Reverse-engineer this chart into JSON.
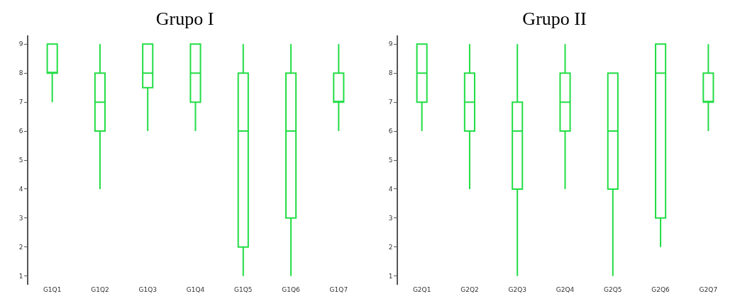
{
  "chart_data": [
    {
      "type": "box",
      "title": "Grupo I",
      "categories": [
        "G1Q1",
        "G1Q2",
        "G1Q3",
        "G1Q4",
        "G1Q5",
        "G1Q6",
        "G1Q7"
      ],
      "color": "#22dd44",
      "ylim": [
        0.7,
        9.3
      ],
      "yticks": [
        1,
        2,
        3,
        4,
        5,
        6,
        7,
        8,
        9
      ],
      "grid": false,
      "legend": false,
      "boxes": [
        {
          "low": 7,
          "q1": 8,
          "median": 8,
          "q3": 9,
          "high": 9
        },
        {
          "low": 4,
          "q1": 6,
          "median": 7,
          "q3": 8,
          "high": 9
        },
        {
          "low": 6,
          "q1": 7.5,
          "median": 8,
          "q3": 9,
          "high": 9
        },
        {
          "low": 6,
          "q1": 7,
          "median": 8,
          "q3": 9,
          "high": 9
        },
        {
          "low": 1,
          "q1": 2,
          "median": 6,
          "q3": 8,
          "high": 9
        },
        {
          "low": 1,
          "q1": 3,
          "median": 6,
          "q3": 8,
          "high": 9
        },
        {
          "low": 6,
          "q1": 7,
          "median": 7,
          "q3": 8,
          "high": 9
        }
      ]
    },
    {
      "type": "box",
      "title": "Grupo II",
      "categories": [
        "G2Q1",
        "G2Q2",
        "G2Q3",
        "G2Q4",
        "G2Q5",
        "G2Q6",
        "G2Q7"
      ],
      "color": "#22dd44",
      "ylim": [
        0.7,
        9.3
      ],
      "yticks": [
        1,
        2,
        3,
        4,
        5,
        6,
        7,
        8,
        9
      ],
      "grid": false,
      "legend": false,
      "boxes": [
        {
          "low": 6,
          "q1": 7,
          "median": 8,
          "q3": 9,
          "high": 9
        },
        {
          "low": 4,
          "q1": 6,
          "median": 7,
          "q3": 8,
          "high": 9
        },
        {
          "low": 1,
          "q1": 4,
          "median": 6,
          "q3": 7,
          "high": 9
        },
        {
          "low": 4,
          "q1": 6,
          "median": 7,
          "q3": 8,
          "high": 9
        },
        {
          "low": 1,
          "q1": 4,
          "median": 6,
          "q3": 8,
          "high": 8
        },
        {
          "low": 2,
          "q1": 3,
          "median": 8,
          "q3": 9,
          "high": 9
        },
        {
          "low": 6,
          "q1": 7,
          "median": 7,
          "q3": 8,
          "high": 9
        }
      ]
    }
  ]
}
